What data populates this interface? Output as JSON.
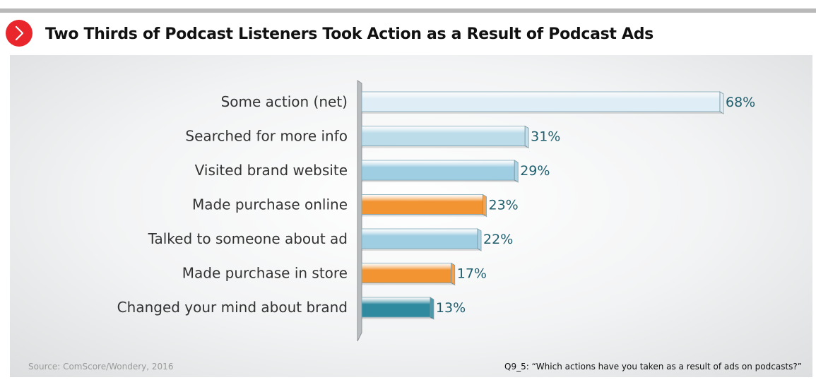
{
  "header": {
    "title": "Two Thirds of Podcast Listeners Took Action as a Result of Podcast Ads",
    "badge_icon": "chevron-right-icon",
    "badge_color": "#e8262c"
  },
  "footer": {
    "source": "Source: ComScore/Wondery, 2016",
    "question": "Q9_5: “Which actions have you taken as a result of ads on podcasts?”"
  },
  "chart_data": {
    "type": "bar",
    "orientation": "horizontal",
    "categories": [
      "Some action (net)",
      "Searched for more info",
      "Visited brand website",
      "Made purchase online",
      "Talked to someone about ad",
      "Made purchase in store",
      "Changed your mind about brand"
    ],
    "values": [
      68,
      31,
      29,
      23,
      22,
      17,
      13
    ],
    "value_labels": [
      "68%",
      "31%",
      "29%",
      "23%",
      "22%",
      "17%",
      "13%"
    ],
    "bar_colors": [
      "#dfeef6",
      "#bcdcea",
      "#9fcde2",
      "#f39433",
      "#9fcde2",
      "#f39433",
      "#2f8aa0"
    ],
    "xlim": [
      0,
      70
    ],
    "grid": false,
    "legend": "none"
  }
}
